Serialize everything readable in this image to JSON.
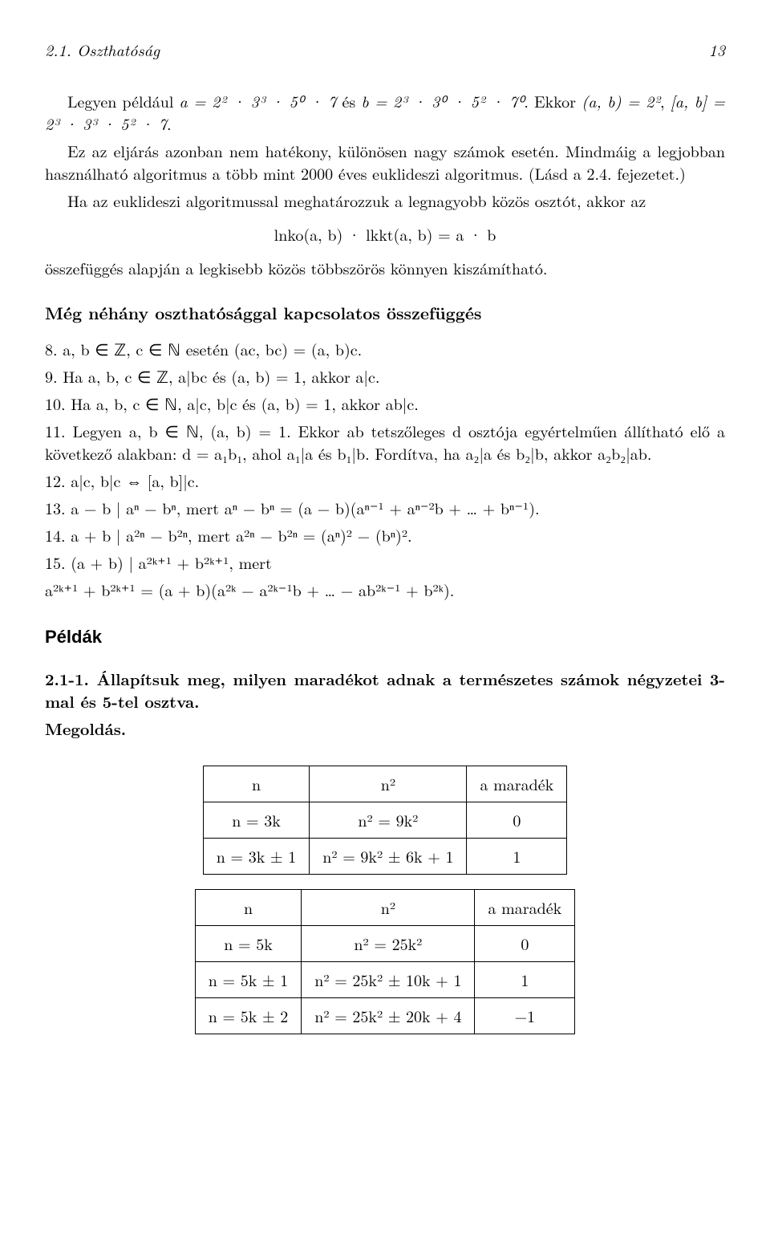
{
  "header": {
    "section": "2.1. Oszthatóság",
    "page": "13"
  },
  "p1_a": "Legyen például ",
  "p1_b": " és ",
  "p1_c": ". Ekkor ",
  "p1_d": ", ",
  "p1_e": ".",
  "eq_a": "a = 2² · 3³ · 5⁰ · 7",
  "eq_b": "b = 2³ · 3⁰ · 5² · 7⁰",
  "eq_gcd": "(a, b) = 2²",
  "eq_lcm": "[a, b] = 2³ · 3³ · 5² · 7",
  "p2": "Ez az eljárás azonban nem hatékony, különösen nagy számok esetén. Mindmáig a legjobban használható algoritmus a több mint 2000 éves euklideszi algoritmus. (Lásd a 2.4. fejezetet.)",
  "p3": "Ha az euklideszi algoritmussal meghatározzuk a legnagyobb közös osztót, akkor az",
  "eq_center": "lnko(a, b) · lkkt(a, b) = a · b",
  "p4": "összefüggés alapján a legkisebb közös többszörös könnyen kiszámítható.",
  "h_rel": "Még néhány oszthatósággal kapcsolatos összefüggés",
  "items": {
    "i8": "8. a, b ∈ ℤ,  c ∈ ℕ esetén (ac, bc) = (a, b)c.",
    "i9": "9. Ha a, b, c ∈ ℤ,  a|bc és (a, b) = 1, akkor a|c.",
    "i10": "10. Ha a, b, c ∈ ℕ,  a|c,  b|c és (a, b) = 1, akkor ab|c.",
    "i11a": "11. Legyen a, b ∈ ℕ,  (a, b) = 1. Ekkor ab tetszőleges d osztója egyértelműen állítható elő a következő alakban: d = a₁b₁, ahol a₁|a és b₁|b. Fordítva, ha a₂|a és b₂|b, akkor a₂b₂|ab.",
    "i12": "12. a|c, b|c ⇔ [a, b]|c.",
    "i13": "13. a − b | aⁿ − bⁿ,  mert  aⁿ − bⁿ = (a − b)(aⁿ⁻¹ + aⁿ⁻²b + … + bⁿ⁻¹).",
    "i14": "14. a + b | a²ⁿ − b²ⁿ,  mert  a²ⁿ − b²ⁿ = (aⁿ)² − (bⁿ)².",
    "i15a": "15. (a + b) | a²ᵏ⁺¹ + b²ᵏ⁺¹,  mert",
    "i15b": "a²ᵏ⁺¹ + b²ᵏ⁺¹ = (a + b)(a²ᵏ − a²ᵏ⁻¹b + … − ab²ᵏ⁻¹ + b²ᵏ)."
  },
  "h_examples": "Példák",
  "ex_title": "2.1-1. Állapítsuk meg, milyen maradékot adnak a természetes számok négyzetei 3-mal és 5-tel osztva.",
  "ex_sol": "Megoldás.",
  "table1": {
    "h1": "n",
    "h2": "n²",
    "h3": "a maradék",
    "r1c1": "n = 3k",
    "r1c2": "n² = 9k²",
    "r1c3": "0",
    "r2c1": "n = 3k ± 1",
    "r2c2": "n² = 9k² ± 6k + 1",
    "r2c3": "1"
  },
  "table2": {
    "h1": "n",
    "h2": "n²",
    "h3": "a maradék",
    "r1c1": "n = 5k",
    "r1c2": "n² = 25k²",
    "r1c3": "0",
    "r2c1": "n = 5k ± 1",
    "r2c2": "n² = 25k² ± 10k + 1",
    "r2c3": "1",
    "r3c1": "n = 5k ± 2",
    "r3c2": "n² = 25k² ± 20k + 4",
    "r3c3": "−1"
  }
}
